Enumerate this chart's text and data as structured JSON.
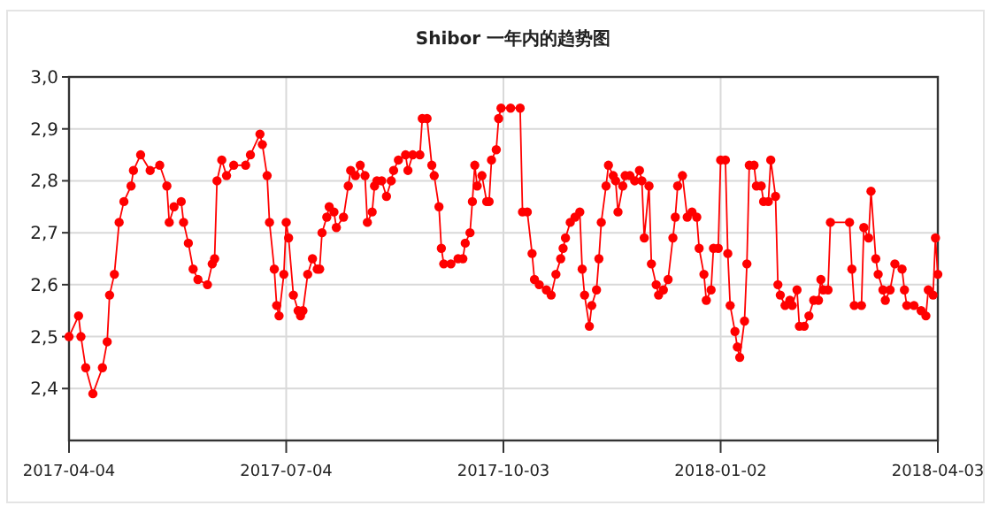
{
  "chart_data": {
    "type": "line",
    "title": "Shibor 一年内的趋势图",
    "xlim": [
      "2017-04-04",
      "2018-04-03"
    ],
    "xticks": [
      "2017-04-04",
      "2017-07-04",
      "2017-10-03",
      "2018-01-02",
      "2018-04-03"
    ],
    "ylim": [
      2.3,
      3.0
    ],
    "yticks": [
      {
        "value": 2.4,
        "label": "2,4"
      },
      {
        "value": 2.5,
        "label": "2,5"
      },
      {
        "value": 2.6,
        "label": "2,6"
      },
      {
        "value": 2.7,
        "label": "2,7"
      },
      {
        "value": 2.8,
        "label": "2,8"
      },
      {
        "value": 2.9,
        "label": "2,9"
      },
      {
        "value": 3.0,
        "label": "3,0"
      }
    ],
    "grid": true,
    "marker": "circle",
    "x": [
      "2017-04-04",
      "2017-04-08",
      "2017-04-09",
      "2017-04-11",
      "2017-04-14",
      "2017-04-18",
      "2017-04-20",
      "2017-04-21",
      "2017-04-23",
      "2017-04-25",
      "2017-04-27",
      "2017-04-30",
      "2017-05-01",
      "2017-05-04",
      "2017-05-08",
      "2017-05-12",
      "2017-05-15",
      "2017-05-16",
      "2017-05-18",
      "2017-05-21",
      "2017-05-22",
      "2017-05-24",
      "2017-05-26",
      "2017-05-28",
      "2017-06-01",
      "2017-06-03",
      "2017-06-04",
      "2017-06-05",
      "2017-06-07",
      "2017-06-09",
      "2017-06-12",
      "2017-06-17",
      "2017-06-19",
      "2017-06-23",
      "2017-06-24",
      "2017-06-26",
      "2017-06-27",
      "2017-06-29",
      "2017-06-30",
      "2017-07-01",
      "2017-07-03",
      "2017-07-04",
      "2017-07-05",
      "2017-07-07",
      "2017-07-09",
      "2017-07-10",
      "2017-07-11",
      "2017-07-13",
      "2017-07-15",
      "2017-07-17",
      "2017-07-18",
      "2017-07-19",
      "2017-07-21",
      "2017-07-22",
      "2017-07-24",
      "2017-07-25",
      "2017-07-28",
      "2017-07-30",
      "2017-07-31",
      "2017-08-02",
      "2017-08-04",
      "2017-08-06",
      "2017-08-07",
      "2017-08-09",
      "2017-08-10",
      "2017-08-11",
      "2017-08-13",
      "2017-08-15",
      "2017-08-17",
      "2017-08-18",
      "2017-08-20",
      "2017-08-23",
      "2017-08-24",
      "2017-08-26",
      "2017-08-29",
      "2017-08-30",
      "2017-09-01",
      "2017-09-03",
      "2017-09-04",
      "2017-09-06",
      "2017-09-07",
      "2017-09-08",
      "2017-09-11",
      "2017-09-14",
      "2017-09-16",
      "2017-09-17",
      "2017-09-19",
      "2017-09-20",
      "2017-09-21",
      "2017-09-22",
      "2017-09-24",
      "2017-09-26",
      "2017-09-27",
      "2017-09-28",
      "2017-09-30",
      "2017-10-01",
      "2017-10-02",
      "2017-10-06",
      "2017-10-10",
      "2017-10-11",
      "2017-10-13",
      "2017-10-15",
      "2017-10-16",
      "2017-10-18",
      "2017-10-21",
      "2017-10-23",
      "2017-10-25",
      "2017-10-27",
      "2017-10-28",
      "2017-10-29",
      "2017-10-31",
      "2017-11-02",
      "2017-11-04",
      "2017-11-05",
      "2017-11-06",
      "2017-11-08",
      "2017-11-09",
      "2017-11-11",
      "2017-11-12",
      "2017-11-13",
      "2017-11-15",
      "2017-11-16",
      "2017-11-18",
      "2017-11-19",
      "2017-11-20",
      "2017-11-22",
      "2017-11-23",
      "2017-11-25",
      "2017-11-27",
      "2017-11-29",
      "2017-11-30",
      "2017-12-01",
      "2017-12-03",
      "2017-12-04",
      "2017-12-06",
      "2017-12-07",
      "2017-12-09",
      "2017-12-11",
      "2017-12-13",
      "2017-12-14",
      "2017-12-15",
      "2017-12-17",
      "2017-12-19",
      "2017-12-21",
      "2017-12-23",
      "2017-12-24",
      "2017-12-26",
      "2017-12-27",
      "2017-12-29",
      "2017-12-30",
      "2018-01-01",
      "2018-01-02",
      "2018-01-04",
      "2018-01-05",
      "2018-01-06",
      "2018-01-08",
      "2018-01-09",
      "2018-01-10",
      "2018-01-12",
      "2018-01-13",
      "2018-01-14",
      "2018-01-16",
      "2018-01-17",
      "2018-01-19",
      "2018-01-20",
      "2018-01-22",
      "2018-01-23",
      "2018-01-25",
      "2018-01-26",
      "2018-01-27",
      "2018-01-29",
      "2018-01-31",
      "2018-02-01",
      "2018-02-03",
      "2018-02-04",
      "2018-02-06",
      "2018-02-08",
      "2018-02-10",
      "2018-02-12",
      "2018-02-13",
      "2018-02-14",
      "2018-02-16",
      "2018-02-17",
      "2018-02-25",
      "2018-02-26",
      "2018-02-27",
      "2018-03-02",
      "2018-03-03",
      "2018-03-05",
      "2018-03-06",
      "2018-03-08",
      "2018-03-09",
      "2018-03-11",
      "2018-03-12",
      "2018-03-14",
      "2018-03-16",
      "2018-03-19",
      "2018-03-20",
      "2018-03-21",
      "2018-03-24",
      "2018-03-27",
      "2018-03-29",
      "2018-03-30",
      "2018-04-01",
      "2018-04-02",
      "2018-04-03"
    ],
    "series": [
      {
        "color": "#ff0000",
        "values": [
          2.5,
          2.54,
          2.5,
          2.44,
          2.39,
          2.44,
          2.49,
          2.58,
          2.62,
          2.72,
          2.76,
          2.79,
          2.82,
          2.85,
          2.82,
          2.83,
          2.79,
          2.72,
          2.75,
          2.76,
          2.72,
          2.68,
          2.63,
          2.61,
          2.6,
          2.64,
          2.65,
          2.8,
          2.84,
          2.81,
          2.83,
          2.83,
          2.85,
          2.89,
          2.87,
          2.81,
          2.72,
          2.63,
          2.56,
          2.54,
          2.62,
          2.72,
          2.69,
          2.58,
          2.55,
          2.54,
          2.55,
          2.62,
          2.65,
          2.63,
          2.63,
          2.7,
          2.73,
          2.75,
          2.74,
          2.71,
          2.73,
          2.79,
          2.82,
          2.81,
          2.83,
          2.81,
          2.72,
          2.74,
          2.79,
          2.8,
          2.8,
          2.77,
          2.8,
          2.82,
          2.84,
          2.85,
          2.82,
          2.85,
          2.85,
          2.92,
          2.92,
          2.83,
          2.81,
          2.75,
          2.67,
          2.64,
          2.64,
          2.65,
          2.65,
          2.68,
          2.7,
          2.76,
          2.83,
          2.79,
          2.81,
          2.76,
          2.76,
          2.84,
          2.86,
          2.92,
          2.94,
          2.94,
          2.94,
          2.74,
          2.74,
          2.66,
          2.61,
          2.6,
          2.59,
          2.58,
          2.62,
          2.65,
          2.67,
          2.69,
          2.72,
          2.73,
          2.74,
          2.63,
          2.58,
          2.52,
          2.56,
          2.59,
          2.65,
          2.72,
          2.79,
          2.83,
          2.81,
          2.8,
          2.74,
          2.79,
          2.81,
          2.81,
          2.8,
          2.82,
          2.8,
          2.69,
          2.79,
          2.64,
          2.6,
          2.58,
          2.59,
          2.61,
          2.69,
          2.73,
          2.79,
          2.81,
          2.73,
          2.74,
          2.73,
          2.67,
          2.62,
          2.57,
          2.59,
          2.67,
          2.67,
          2.84,
          2.84,
          2.66,
          2.56,
          2.51,
          2.48,
          2.46,
          2.53,
          2.64,
          2.83,
          2.83,
          2.79,
          2.79,
          2.76,
          2.76,
          2.84,
          2.77,
          2.6,
          2.58,
          2.56,
          2.57,
          2.56,
          2.59,
          2.52,
          2.52,
          2.54,
          2.57,
          2.57,
          2.61,
          2.59,
          2.59,
          2.72,
          2.72,
          2.63,
          2.56,
          2.56,
          2.71,
          2.69,
          2.78,
          2.65,
          2.62,
          2.59,
          2.57,
          2.59,
          2.64,
          2.63,
          2.59,
          2.56,
          2.56,
          2.55,
          2.54,
          2.59,
          2.58,
          2.69,
          2.62
        ]
      }
    ]
  }
}
